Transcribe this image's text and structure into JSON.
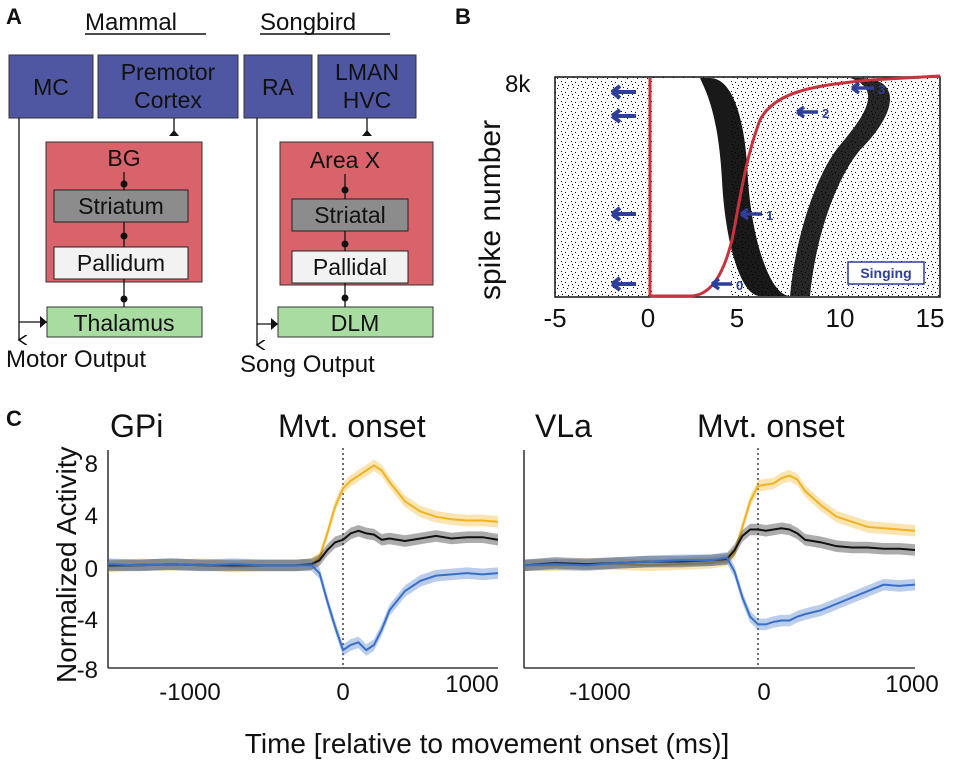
{
  "panels": {
    "a": "A",
    "b": "B",
    "c": "C"
  },
  "colors": {
    "blue_box": "#4f57a3",
    "red_box": "#d9636b",
    "grey_box": "#8c8c8c",
    "white_box": "#f2f2f2",
    "green_box": "#a9dca0",
    "orange": "#f0b323",
    "black": "#111111",
    "blue": "#3a6fc7",
    "curve_red": "#c8323c",
    "arrow_blue": "#2d3f9a"
  },
  "diagram_a": {
    "mammal": {
      "header": "Mammal",
      "mc": "MC",
      "premotor_1": "Premotor",
      "premotor_2": "Cortex",
      "bg": "BG",
      "striatum": "Striatum",
      "pallidum": "Pallidum",
      "thalamus": "Thalamus",
      "output": "Motor Output"
    },
    "songbird": {
      "header": "Songbird",
      "ra": "RA",
      "lman": "LMAN",
      "hvc": "HVC",
      "areax": "Area X",
      "striatal": "Striatal",
      "pallidal": "Pallidal",
      "dlm": "DLM",
      "output": "Song Output"
    }
  },
  "panel_b": {
    "ylabel": "spike number",
    "ytick": "8k",
    "xticks": [
      "-5",
      "0",
      "5",
      "10",
      "15"
    ],
    "arrow_labels": [
      "0",
      "1",
      "2",
      "3"
    ],
    "badge": "Singing"
  },
  "panel_c": {
    "ylabel": "Normalized Activity",
    "xlabel": "Time [relative to movement onset (ms)]",
    "onset_label": "Mvt. onset",
    "left_title": "GPi",
    "right_title": "VLa",
    "yticks": [
      "8",
      "4",
      "0",
      "-4",
      "-8"
    ],
    "xticks": [
      "-1000",
      "0",
      "1000"
    ]
  },
  "chart_data": [
    {
      "type": "line",
      "title": "GPi",
      "xlabel": "Time [relative to movement onset (ms)]",
      "ylabel": "Normalized Activity",
      "xlim": [
        -1500,
        1000
      ],
      "ylim": [
        -8,
        9
      ],
      "x": [
        -1500,
        -1300,
        -1100,
        -900,
        -700,
        -500,
        -300,
        -200,
        -150,
        -100,
        -50,
        0,
        50,
        100,
        150,
        200,
        250,
        300,
        400,
        500,
        600,
        700,
        800,
        900,
        1000
      ],
      "series": [
        {
          "name": "orange",
          "values": [
            -0.1,
            0.1,
            0.0,
            0.1,
            -0.1,
            0.0,
            0.0,
            0.1,
            0.6,
            2.5,
            4.6,
            6.0,
            6.6,
            7.0,
            7.4,
            7.8,
            7.4,
            6.5,
            5.0,
            4.2,
            3.8,
            3.6,
            3.5,
            3.5,
            3.4
          ]
        },
        {
          "name": "black",
          "values": [
            0.0,
            0.0,
            0.1,
            0.0,
            0.0,
            0.0,
            0.0,
            0.1,
            0.4,
            1.2,
            1.8,
            2.0,
            2.5,
            2.7,
            2.5,
            2.4,
            2.0,
            2.1,
            1.9,
            2.1,
            2.3,
            2.1,
            2.2,
            2.2,
            2.0
          ]
        },
        {
          "name": "blue",
          "values": [
            0.1,
            0.0,
            0.1,
            0.0,
            0.1,
            0.0,
            0.0,
            0.0,
            -0.6,
            -2.8,
            -4.8,
            -6.6,
            -6.2,
            -6.0,
            -6.6,
            -6.2,
            -5.0,
            -3.5,
            -2.0,
            -1.2,
            -0.8,
            -0.7,
            -0.6,
            -0.7,
            -0.6
          ]
        }
      ]
    },
    {
      "type": "line",
      "title": "VLa",
      "xlabel": "Time [relative to movement onset (ms)]",
      "ylabel": "Normalized Activity",
      "xlim": [
        -1500,
        1000
      ],
      "ylim": [
        -8,
        9
      ],
      "x": [
        -1500,
        -1300,
        -1100,
        -900,
        -700,
        -500,
        -300,
        -200,
        -150,
        -100,
        -50,
        0,
        50,
        100,
        150,
        200,
        250,
        300,
        400,
        500,
        600,
        700,
        800,
        900,
        1000
      ],
      "series": [
        {
          "name": "orange",
          "values": [
            0.0,
            0.0,
            0.1,
            0.1,
            0.0,
            0.1,
            0.2,
            0.4,
            1.0,
            3.0,
            5.0,
            6.2,
            6.3,
            6.4,
            6.8,
            7.0,
            6.7,
            5.8,
            4.7,
            3.8,
            3.4,
            3.0,
            2.9,
            2.8,
            2.7
          ]
        },
        {
          "name": "black",
          "values": [
            0.0,
            0.2,
            0.1,
            0.2,
            0.3,
            0.3,
            0.4,
            0.5,
            1.2,
            2.3,
            2.8,
            2.8,
            2.7,
            2.8,
            2.9,
            2.8,
            2.5,
            2.0,
            1.8,
            1.5,
            1.4,
            1.4,
            1.3,
            1.3,
            1.2
          ]
        },
        {
          "name": "blue",
          "values": [
            0.0,
            0.1,
            0.0,
            0.2,
            0.3,
            0.4,
            0.4,
            0.6,
            -0.5,
            -2.5,
            -4.0,
            -4.6,
            -4.6,
            -4.4,
            -4.3,
            -4.3,
            -4.0,
            -3.8,
            -3.5,
            -3.0,
            -2.5,
            -2.0,
            -1.5,
            -1.6,
            -1.5
          ]
        }
      ]
    }
  ]
}
